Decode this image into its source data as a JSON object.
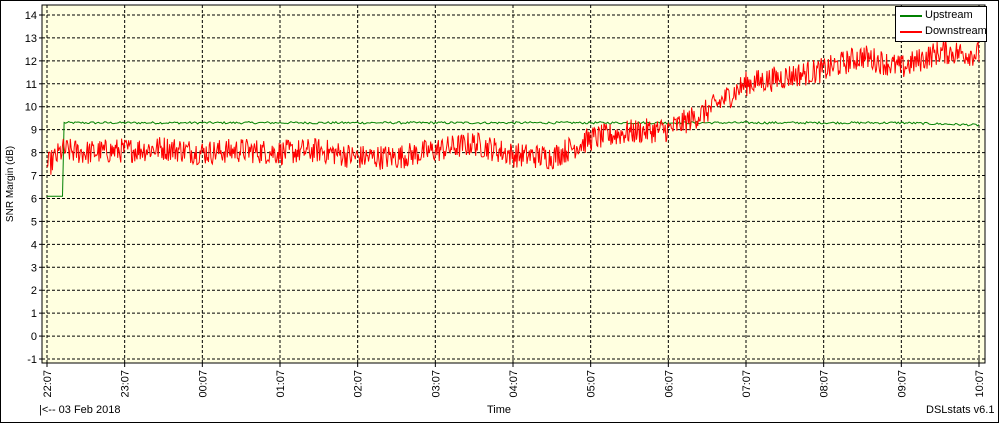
{
  "chart_data": {
    "type": "line",
    "ylabel": "SNR Margin (dB)",
    "xlabel": "Time",
    "ylim": [
      -1,
      14
    ],
    "yticks": [
      -1,
      0,
      1,
      2,
      3,
      4,
      5,
      6,
      7,
      8,
      9,
      10,
      11,
      12,
      13,
      14
    ],
    "xticks": [
      "22:07",
      "23:07",
      "00:07",
      "01:07",
      "02:07",
      "03:07",
      "04:07",
      "05:07",
      "06:07",
      "07:07",
      "08:07",
      "09:07",
      "10:07"
    ],
    "xlim_hours": [
      0,
      12
    ],
    "grid": true,
    "legend_position": "top-right",
    "series": [
      {
        "name": "Upstream",
        "color": "#008000",
        "x": [
          0.0,
          0.2,
          0.22,
          0.3,
          1.0,
          2.0,
          3.0,
          4.0,
          5.0,
          6.0,
          7.0,
          8.0,
          9.0,
          10.0,
          11.0,
          12.0
        ],
        "y": [
          6.1,
          6.1,
          9.3,
          9.3,
          9.3,
          9.3,
          9.3,
          9.3,
          9.3,
          9.3,
          9.3,
          9.3,
          9.3,
          9.3,
          9.3,
          9.2
        ]
      },
      {
        "name": "Downstream",
        "color": "#ff0000",
        "x": [
          0.0,
          0.2,
          0.5,
          1.0,
          1.5,
          2.0,
          2.5,
          3.0,
          3.5,
          4.0,
          4.5,
          5.0,
          5.5,
          6.0,
          6.5,
          7.0,
          7.5,
          8.0,
          8.5,
          9.0,
          9.5,
          10.0,
          10.5,
          11.0,
          11.5,
          12.0
        ],
        "y": [
          7.4,
          8.1,
          8.0,
          8.1,
          8.2,
          8.0,
          8.1,
          8.0,
          8.1,
          7.8,
          7.8,
          8.1,
          8.4,
          7.9,
          7.8,
          8.6,
          8.9,
          9.0,
          9.8,
          11.0,
          11.3,
          11.6,
          12.2,
          11.7,
          12.4,
          12.3
        ]
      }
    ]
  },
  "footer": {
    "left": "|<-- 03 Feb 2018",
    "center": "Time",
    "right": "DSLstats v6.1"
  }
}
